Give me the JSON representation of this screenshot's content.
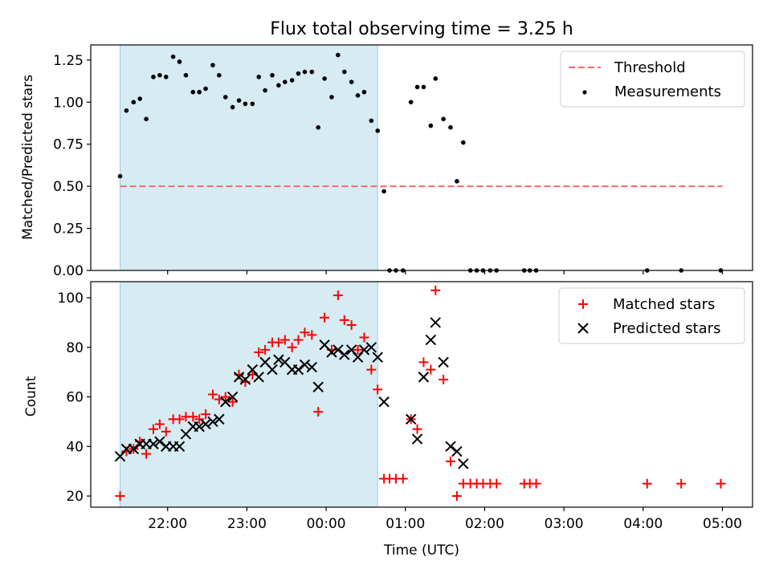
{
  "chart_data": {
    "type": "scatter",
    "title": "Flux total observing time = 3.25 h",
    "xlabel": "Time (UTC)",
    "x_unit": "hours since 00:00 UTC",
    "xlim": [
      -2.97,
      5.38
    ],
    "x_ticks": [
      {
        "value": -2,
        "label": "22:00"
      },
      {
        "value": -1,
        "label": "23:00"
      },
      {
        "value": 0,
        "label": "00:00"
      },
      {
        "value": 1,
        "label": "01:00"
      },
      {
        "value": 2,
        "label": "02:00"
      },
      {
        "value": 3,
        "label": "03:00"
      },
      {
        "value": 4,
        "label": "04:00"
      },
      {
        "value": 5,
        "label": "05:00"
      }
    ],
    "observing_window": {
      "start": -2.6,
      "end": 0.65
    },
    "colors": {
      "window": "#add8e6",
      "threshold": "#ff6666",
      "matched": "#ff0000",
      "predicted": "#000000",
      "measurements": "#000000"
    },
    "top": {
      "ylabel": "Matched/Predicted stars",
      "ylim": [
        0,
        1.34
      ],
      "yticks": [
        "0.00",
        "0.25",
        "0.50",
        "0.75",
        "1.00",
        "1.25"
      ],
      "threshold": {
        "value": 0.5,
        "x_range": [
          -2.6,
          5.0
        ]
      },
      "legend": {
        "position": "top-right",
        "threshold_label": "Threshold",
        "measurements_label": "Measurements"
      },
      "measurements": [
        [
          -2.6,
          0.56
        ],
        [
          -2.52,
          0.95
        ],
        [
          -2.43,
          1.0
        ],
        [
          -2.35,
          1.02
        ],
        [
          -2.27,
          0.9
        ],
        [
          -2.18,
          1.15
        ],
        [
          -2.1,
          1.16
        ],
        [
          -2.02,
          1.15
        ],
        [
          -1.93,
          1.27
        ],
        [
          -1.85,
          1.24
        ],
        [
          -1.77,
          1.16
        ],
        [
          -1.68,
          1.06
        ],
        [
          -1.6,
          1.06
        ],
        [
          -1.52,
          1.08
        ],
        [
          -1.43,
          1.22
        ],
        [
          -1.35,
          1.16
        ],
        [
          -1.27,
          1.03
        ],
        [
          -1.18,
          0.97
        ],
        [
          -1.1,
          1.01
        ],
        [
          -1.02,
          0.99
        ],
        [
          -0.93,
          0.99
        ],
        [
          -0.85,
          1.15
        ],
        [
          -0.77,
          1.07
        ],
        [
          -0.68,
          1.16
        ],
        [
          -0.6,
          1.1
        ],
        [
          -0.52,
          1.12
        ],
        [
          -0.43,
          1.13
        ],
        [
          -0.35,
          1.17
        ],
        [
          -0.27,
          1.18
        ],
        [
          -0.18,
          1.18
        ],
        [
          -0.1,
          0.85
        ],
        [
          -0.02,
          1.14
        ],
        [
          0.07,
          1.03
        ],
        [
          0.15,
          1.28
        ],
        [
          0.23,
          1.18
        ],
        [
          0.32,
          1.12
        ],
        [
          0.4,
          1.04
        ],
        [
          0.48,
          1.06
        ],
        [
          0.57,
          0.89
        ],
        [
          0.65,
          0.83
        ],
        [
          0.73,
          0.47
        ],
        [
          0.8,
          0.0
        ],
        [
          0.88,
          0.0
        ],
        [
          0.97,
          0.0
        ],
        [
          1.07,
          1.0
        ],
        [
          1.15,
          1.09
        ],
        [
          1.23,
          1.09
        ],
        [
          1.32,
          0.86
        ],
        [
          1.38,
          1.14
        ],
        [
          1.48,
          0.9
        ],
        [
          1.57,
          0.85
        ],
        [
          1.65,
          0.53
        ],
        [
          1.73,
          0.76
        ],
        [
          1.82,
          0.0
        ],
        [
          1.9,
          0.0
        ],
        [
          1.98,
          0.0
        ],
        [
          2.07,
          0.0
        ],
        [
          2.15,
          0.0
        ],
        [
          2.5,
          0.0
        ],
        [
          2.57,
          0.0
        ],
        [
          2.65,
          0.0
        ],
        [
          4.05,
          0.0
        ],
        [
          4.48,
          0.0
        ],
        [
          4.98,
          0.0
        ]
      ]
    },
    "bottom": {
      "ylabel": "Count",
      "ylim": [
        15.5,
        106.5
      ],
      "yticks": [
        "20",
        "40",
        "60",
        "80",
        "100"
      ],
      "legend": {
        "position": "top-right",
        "matched_label": "Matched stars",
        "predicted_label": "Predicted stars"
      },
      "matched": [
        [
          -2.6,
          20
        ],
        [
          -2.52,
          38
        ],
        [
          -2.43,
          39
        ],
        [
          -2.35,
          42
        ],
        [
          -2.27,
          37
        ],
        [
          -2.18,
          47
        ],
        [
          -2.1,
          49
        ],
        [
          -2.02,
          46
        ],
        [
          -1.93,
          51
        ],
        [
          -1.85,
          51
        ],
        [
          -1.77,
          52
        ],
        [
          -1.68,
          52
        ],
        [
          -1.6,
          51
        ],
        [
          -1.52,
          53
        ],
        [
          -1.43,
          61
        ],
        [
          -1.35,
          59
        ],
        [
          -1.27,
          60
        ],
        [
          -1.18,
          58
        ],
        [
          -1.1,
          69
        ],
        [
          -1.02,
          66
        ],
        [
          -0.93,
          69
        ],
        [
          -0.85,
          78
        ],
        [
          -0.77,
          79
        ],
        [
          -0.68,
          82
        ],
        [
          -0.6,
          82
        ],
        [
          -0.52,
          83
        ],
        [
          -0.43,
          80
        ],
        [
          -0.35,
          83
        ],
        [
          -0.27,
          86
        ],
        [
          -0.18,
          85
        ],
        [
          -0.1,
          54
        ],
        [
          -0.02,
          92
        ],
        [
          0.07,
          79
        ],
        [
          0.15,
          101
        ],
        [
          0.23,
          91
        ],
        [
          0.32,
          89
        ],
        [
          0.4,
          79
        ],
        [
          0.48,
          84
        ],
        [
          0.57,
          71
        ],
        [
          0.65,
          63
        ],
        [
          0.73,
          27
        ],
        [
          0.8,
          27
        ],
        [
          0.88,
          27
        ],
        [
          0.97,
          27
        ],
        [
          1.07,
          51
        ],
        [
          1.15,
          47
        ],
        [
          1.23,
          74
        ],
        [
          1.32,
          71
        ],
        [
          1.38,
          103
        ],
        [
          1.48,
          67
        ],
        [
          1.57,
          34
        ],
        [
          1.65,
          20
        ],
        [
          1.73,
          25
        ],
        [
          1.82,
          25
        ],
        [
          1.9,
          25
        ],
        [
          1.98,
          25
        ],
        [
          2.07,
          25
        ],
        [
          2.15,
          25
        ],
        [
          2.5,
          25
        ],
        [
          2.57,
          25
        ],
        [
          2.65,
          25
        ],
        [
          4.05,
          25
        ],
        [
          4.48,
          25
        ],
        [
          4.98,
          25
        ]
      ],
      "predicted": [
        [
          -2.6,
          36
        ],
        [
          -2.52,
          39
        ],
        [
          -2.43,
          39
        ],
        [
          -2.35,
          41
        ],
        [
          -2.27,
          41
        ],
        [
          -2.18,
          41
        ],
        [
          -2.1,
          42
        ],
        [
          -2.02,
          40
        ],
        [
          -1.93,
          40
        ],
        [
          -1.85,
          40
        ],
        [
          -1.77,
          45
        ],
        [
          -1.68,
          48
        ],
        [
          -1.6,
          48
        ],
        [
          -1.52,
          49
        ],
        [
          -1.43,
          50
        ],
        [
          -1.35,
          51
        ],
        [
          -1.27,
          58
        ],
        [
          -1.18,
          60
        ],
        [
          -1.1,
          68
        ],
        [
          -1.02,
          67
        ],
        [
          -0.93,
          71
        ],
        [
          -0.85,
          68
        ],
        [
          -0.77,
          74
        ],
        [
          -0.68,
          71
        ],
        [
          -0.6,
          75
        ],
        [
          -0.52,
          74
        ],
        [
          -0.43,
          71
        ],
        [
          -0.35,
          71
        ],
        [
          -0.27,
          73
        ],
        [
          -0.18,
          72
        ],
        [
          -0.1,
          64
        ],
        [
          -0.02,
          81
        ],
        [
          0.07,
          78
        ],
        [
          0.15,
          79
        ],
        [
          0.23,
          77
        ],
        [
          0.32,
          79
        ],
        [
          0.4,
          76
        ],
        [
          0.48,
          79
        ],
        [
          0.57,
          80
        ],
        [
          0.65,
          76
        ],
        [
          0.73,
          58
        ],
        [
          1.07,
          51
        ],
        [
          1.15,
          43
        ],
        [
          1.23,
          68
        ],
        [
          1.32,
          83
        ],
        [
          1.38,
          90
        ],
        [
          1.48,
          74
        ],
        [
          1.57,
          40
        ],
        [
          1.65,
          38
        ],
        [
          1.73,
          33
        ]
      ]
    }
  }
}
